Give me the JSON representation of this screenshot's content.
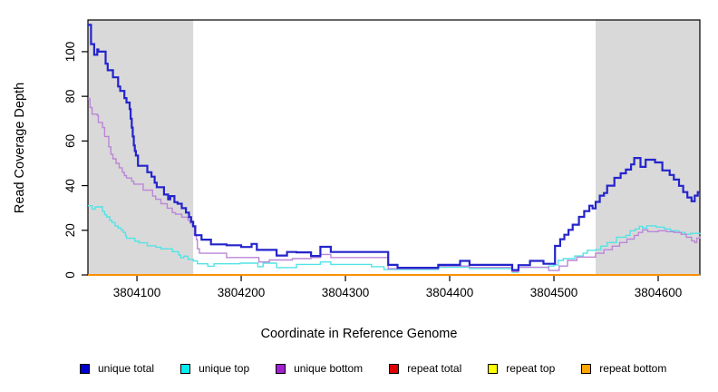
{
  "figure": {
    "background": "#ffffff",
    "plot_border_color": "#000000",
    "shade_color": "#d9d9d9"
  },
  "chart_data": {
    "type": "line",
    "step": true,
    "title": "",
    "xlabel": "Coordinate in Reference Genome",
    "ylabel": "Read Coverage Depth",
    "xlim": [
      3804053,
      3804640
    ],
    "ylim": [
      0,
      114.2
    ],
    "x_ticks": [
      3804100,
      3804200,
      3804300,
      3804400,
      3804500,
      3804600
    ],
    "y_ticks": [
      0,
      20,
      40,
      60,
      80,
      100
    ],
    "grid": false,
    "legend_position": "bottom",
    "shaded_regions": [
      {
        "from": 3804053,
        "to": 3804154
      },
      {
        "from": 3804540,
        "to": 3804640
      }
    ],
    "series": [
      {
        "name": "repeat total",
        "color": "#dd0000",
        "width": 1.4,
        "points": [
          [
            3804053,
            0
          ],
          [
            3804640,
            0
          ]
        ]
      },
      {
        "name": "repeat top",
        "color": "#ffff00",
        "width": 1.4,
        "points": [
          [
            3804053,
            0
          ],
          [
            3804640,
            0
          ]
        ]
      },
      {
        "name": "repeat bottom",
        "color": "#ff8c00",
        "width": 1.8,
        "points": [
          [
            3804053,
            0
          ],
          [
            3804640,
            0
          ]
        ]
      },
      {
        "name": "unique top",
        "color": "#53e3e6",
        "width": 1.4,
        "points": [
          [
            3804053,
            31
          ],
          [
            3804057,
            29.5
          ],
          [
            3804060,
            30.5
          ],
          [
            3804067,
            28.5
          ],
          [
            3804069,
            27
          ],
          [
            3804071,
            26
          ],
          [
            3804074,
            24.5
          ],
          [
            3804076,
            23.5
          ],
          [
            3804079,
            22
          ],
          [
            3804082,
            21
          ],
          [
            3804085,
            20
          ],
          [
            3804087,
            19
          ],
          [
            3804089,
            17.5
          ],
          [
            3804090,
            16.4
          ],
          [
            3804098,
            15.1
          ],
          [
            3804102,
            14.4
          ],
          [
            3804110,
            13.1
          ],
          [
            3804118,
            12.4
          ],
          [
            3804123,
            11.7
          ],
          [
            3804134,
            10.4
          ],
          [
            3804140,
            9
          ],
          [
            3804142,
            7.7
          ],
          [
            3804145,
            8.4
          ],
          [
            3804149,
            7
          ],
          [
            3804154,
            6.3
          ],
          [
            3804158,
            5
          ],
          [
            3804168,
            3.9
          ],
          [
            3804174,
            5
          ],
          [
            3804199,
            5.3
          ],
          [
            3804216,
            3.7
          ],
          [
            3804221,
            5.3
          ],
          [
            3804234,
            3.3
          ],
          [
            3804253,
            4.7
          ],
          [
            3804276,
            5.8
          ],
          [
            3804286,
            4.7
          ],
          [
            3804325,
            3.7
          ],
          [
            3804337,
            2.4
          ],
          [
            3804389,
            3.4
          ],
          [
            3804419,
            2.8
          ],
          [
            3804460,
            1.2
          ],
          [
            3804466,
            3.4
          ],
          [
            3804495,
            4
          ],
          [
            3804500,
            4.5
          ],
          [
            3804504,
            6.5
          ],
          [
            3804509,
            7.3
          ],
          [
            3804520,
            8.5
          ],
          [
            3804528,
            9.7
          ],
          [
            3804532,
            11
          ],
          [
            3804540,
            11.3
          ],
          [
            3804545,
            12.9
          ],
          [
            3804551,
            14.5
          ],
          [
            3804560,
            16.9
          ],
          [
            3804569,
            17.7
          ],
          [
            3804573,
            19.8
          ],
          [
            3804578,
            20.6
          ],
          [
            3804582,
            21.8
          ],
          [
            3804585,
            21
          ],
          [
            3804589,
            22
          ],
          [
            3804598,
            21.4
          ],
          [
            3804606,
            20.6
          ],
          [
            3804612,
            19.8
          ],
          [
            3804620,
            19
          ],
          [
            3804626,
            18.2
          ],
          [
            3804631,
            18.6
          ],
          [
            3804640,
            18.8
          ]
        ]
      },
      {
        "name": "unique bottom",
        "color": "#bb86d8",
        "width": 1.4,
        "points": [
          [
            3804053,
            79
          ],
          [
            3804055,
            75
          ],
          [
            3804057,
            72
          ],
          [
            3804062,
            71.5
          ],
          [
            3804063,
            68.3
          ],
          [
            3804067,
            66
          ],
          [
            3804069,
            62
          ],
          [
            3804073,
            57.4
          ],
          [
            3804075,
            54
          ],
          [
            3804077,
            52
          ],
          [
            3804080,
            50
          ],
          [
            3804083,
            48
          ],
          [
            3804086,
            46
          ],
          [
            3804088,
            44.5
          ],
          [
            3804090,
            43.4
          ],
          [
            3804095,
            42
          ],
          [
            3804097,
            40.7
          ],
          [
            3804106,
            38
          ],
          [
            3804115,
            35.3
          ],
          [
            3804118,
            33.9
          ],
          [
            3804123,
            31.9
          ],
          [
            3804129,
            29.9
          ],
          [
            3804134,
            27.9
          ],
          [
            3804137,
            27.2
          ],
          [
            3804143,
            25.9
          ],
          [
            3804149,
            24.5
          ],
          [
            3804151,
            23.2
          ],
          [
            3804153,
            21.8
          ],
          [
            3804155,
            17.8
          ],
          [
            3804157,
            15.8
          ],
          [
            3804158,
            11.7
          ],
          [
            3804160,
            9.7
          ],
          [
            3804186,
            7.8
          ],
          [
            3804217,
            5.8
          ],
          [
            3804227,
            6.7
          ],
          [
            3804249,
            7.3
          ],
          [
            3804267,
            7.8
          ],
          [
            3804276,
            9.2
          ],
          [
            3804286,
            7.8
          ],
          [
            3804341,
            2.8
          ],
          [
            3804389,
            4
          ],
          [
            3804419,
            3.4
          ],
          [
            3804460,
            1.5
          ],
          [
            3804466,
            3.4
          ],
          [
            3804495,
            2
          ],
          [
            3804505,
            4
          ],
          [
            3804513,
            6.5
          ],
          [
            3804522,
            8
          ],
          [
            3804540,
            9.7
          ],
          [
            3804548,
            11.3
          ],
          [
            3804556,
            12.9
          ],
          [
            3804563,
            14.5
          ],
          [
            3804570,
            16.1
          ],
          [
            3804577,
            17.7
          ],
          [
            3804581,
            19
          ],
          [
            3804585,
            20.2
          ],
          [
            3804590,
            19.4
          ],
          [
            3804600,
            19.8
          ],
          [
            3804608,
            19.4
          ],
          [
            3804615,
            19
          ],
          [
            3804622,
            18.2
          ],
          [
            3804627,
            16.9
          ],
          [
            3804632,
            15.3
          ],
          [
            3804635,
            14.5
          ],
          [
            3804637,
            16.5
          ],
          [
            3804640,
            17.3
          ]
        ]
      },
      {
        "name": "unique total",
        "color": "#2424cc",
        "width": 2.2,
        "points": [
          [
            3804053,
            112
          ],
          [
            3804056,
            103.4
          ],
          [
            3804059,
            98.6
          ],
          [
            3804062,
            101
          ],
          [
            3804063,
            100
          ],
          [
            3804070,
            94.6
          ],
          [
            3804072,
            91.7
          ],
          [
            3804077,
            88.5
          ],
          [
            3804082,
            84.4
          ],
          [
            3804084,
            82.4
          ],
          [
            3804088,
            79.2
          ],
          [
            3804090,
            77.2
          ],
          [
            3804093,
            74.3
          ],
          [
            3804094,
            70
          ],
          [
            3804095,
            66
          ],
          [
            3804096,
            62
          ],
          [
            3804097,
            58
          ],
          [
            3804098,
            55.5
          ],
          [
            3804099,
            53.5
          ],
          [
            3804101,
            48.9
          ],
          [
            3804110,
            46
          ],
          [
            3804114,
            44
          ],
          [
            3804117,
            41.3
          ],
          [
            3804119,
            39.3
          ],
          [
            3804126,
            36
          ],
          [
            3804130,
            33.9
          ],
          [
            3804132,
            35.3
          ],
          [
            3804136,
            32.6
          ],
          [
            3804139,
            31.9
          ],
          [
            3804143,
            29.9
          ],
          [
            3804147,
            27.9
          ],
          [
            3804150,
            25.9
          ],
          [
            3804152,
            23.8
          ],
          [
            3804154,
            21.8
          ],
          [
            3804156,
            17.8
          ],
          [
            3804162,
            15.8
          ],
          [
            3804171,
            13.7
          ],
          [
            3804186,
            13.3
          ],
          [
            3804200,
            12.5
          ],
          [
            3804210,
            13.9
          ],
          [
            3804215,
            11.2
          ],
          [
            3804234,
            8.7
          ],
          [
            3804244,
            10.3
          ],
          [
            3804253,
            10.1
          ],
          [
            3804267,
            8.5
          ],
          [
            3804276,
            12.6
          ],
          [
            3804286,
            10.3
          ],
          [
            3804341,
            4.5
          ],
          [
            3804350,
            3.2
          ],
          [
            3804389,
            4.5
          ],
          [
            3804410,
            6.3
          ],
          [
            3804419,
            4.5
          ],
          [
            3804460,
            2.2
          ],
          [
            3804466,
            4.4
          ],
          [
            3804477,
            6.3
          ],
          [
            3804490,
            5
          ],
          [
            3804501,
            13
          ],
          [
            3804506,
            16
          ],
          [
            3804510,
            18
          ],
          [
            3804514,
            20.2
          ],
          [
            3804518,
            22.5
          ],
          [
            3804524,
            26
          ],
          [
            3804529,
            28.6
          ],
          [
            3804534,
            31
          ],
          [
            3804537,
            29.8
          ],
          [
            3804540,
            32.7
          ],
          [
            3804544,
            35.5
          ],
          [
            3804548,
            36.7
          ],
          [
            3804551,
            40
          ],
          [
            3804558,
            43.5
          ],
          [
            3804564,
            45.5
          ],
          [
            3804569,
            47.2
          ],
          [
            3804574,
            49.5
          ],
          [
            3804577,
            52.4
          ],
          [
            3804583,
            48.4
          ],
          [
            3804588,
            51.6
          ],
          [
            3804597,
            50.4
          ],
          [
            3804604,
            46.8
          ],
          [
            3804611,
            44.8
          ],
          [
            3804615,
            42.7
          ],
          [
            3804620,
            39.9
          ],
          [
            3804624,
            37.1
          ],
          [
            3804628,
            34.7
          ],
          [
            3804632,
            33
          ],
          [
            3804635,
            35.5
          ],
          [
            3804638,
            37.1
          ],
          [
            3804640,
            37.1
          ]
        ]
      }
    ]
  },
  "legend": {
    "items": [
      {
        "label": "unique total",
        "color": "#0000cc"
      },
      {
        "label": "unique top",
        "color": "#00eeee"
      },
      {
        "label": "unique bottom",
        "color": "#a020d0"
      },
      {
        "label": "repeat total",
        "color": "#dd0000"
      },
      {
        "label": "repeat top",
        "color": "#ffff00"
      },
      {
        "label": "repeat bottom",
        "color": "#ffa500"
      }
    ]
  }
}
